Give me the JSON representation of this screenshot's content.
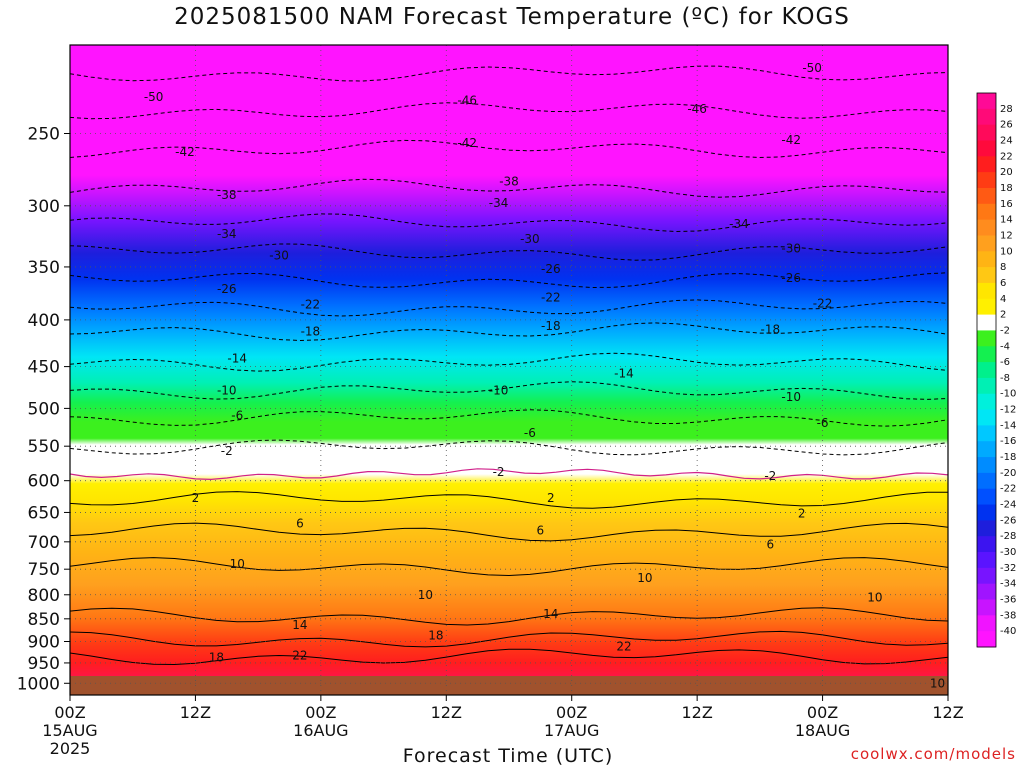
{
  "title": "2025081500 NAM Forecast Temperature (ºC) for KOGS",
  "xlabel": "Forecast Time (UTC)",
  "credit": "coolwx.com/models",
  "chart_data": {
    "type": "heatmap",
    "title": "2025081500 NAM Forecast Temperature (ºC) for KOGS",
    "xlabel": "Forecast Time (UTC)",
    "ylabel": "",
    "y_scale": "log-pressure",
    "y_ticks": [
      250,
      300,
      350,
      400,
      450,
      500,
      550,
      600,
      650,
      700,
      750,
      800,
      850,
      900,
      950,
      1000
    ],
    "ylim": [
      200,
      1030
    ],
    "x_ticks": [
      {
        "hour": 0,
        "label": "00Z",
        "date": "15AUG",
        "year": "2025"
      },
      {
        "hour": 12,
        "label": "12Z",
        "date": "",
        "year": ""
      },
      {
        "hour": 24,
        "label": "00Z",
        "date": "16AUG",
        "year": ""
      },
      {
        "hour": 36,
        "label": "12Z",
        "date": "",
        "year": ""
      },
      {
        "hour": 48,
        "label": "00Z",
        "date": "17AUG",
        "year": ""
      },
      {
        "hour": 60,
        "label": "12Z",
        "date": "",
        "year": ""
      },
      {
        "hour": 72,
        "label": "00Z",
        "date": "18AUG",
        "year": ""
      },
      {
        "hour": 84,
        "label": "12Z",
        "date": "",
        "year": ""
      }
    ],
    "xlim": [
      0,
      84
    ],
    "contour_levels": [
      -50,
      -46,
      -42,
      -38,
      -34,
      -30,
      -26,
      -22,
      -18,
      -14,
      -10,
      -6,
      -2,
      2,
      6,
      10,
      14,
      18,
      22
    ],
    "contour_labels": [
      {
        "t": 8,
        "p": 228,
        "v": "-50"
      },
      {
        "t": 71,
        "p": 212,
        "v": "-50"
      },
      {
        "t": 38,
        "p": 230,
        "v": "-46"
      },
      {
        "t": 60,
        "p": 235,
        "v": "-46"
      },
      {
        "t": 11,
        "p": 262,
        "v": "-42"
      },
      {
        "t": 38,
        "p": 256,
        "v": "-42"
      },
      {
        "t": 69,
        "p": 254,
        "v": "-42"
      },
      {
        "t": 42,
        "p": 282,
        "v": "-38"
      },
      {
        "t": 15,
        "p": 292,
        "v": "-38"
      },
      {
        "t": 41,
        "p": 298,
        "v": "-34"
      },
      {
        "t": 15,
        "p": 322,
        "v": "-34"
      },
      {
        "t": 64,
        "p": 314,
        "v": "-34"
      },
      {
        "t": 44,
        "p": 326,
        "v": "-30"
      },
      {
        "t": 20,
        "p": 340,
        "v": "-30"
      },
      {
        "t": 69,
        "p": 334,
        "v": "-30"
      },
      {
        "t": 46,
        "p": 352,
        "v": "-26"
      },
      {
        "t": 15,
        "p": 370,
        "v": "-26"
      },
      {
        "t": 69,
        "p": 360,
        "v": "-26"
      },
      {
        "t": 46,
        "p": 378,
        "v": "-22"
      },
      {
        "t": 23,
        "p": 385,
        "v": "-22"
      },
      {
        "t": 72,
        "p": 384,
        "v": "-22"
      },
      {
        "t": 46,
        "p": 406,
        "v": "-18"
      },
      {
        "t": 23,
        "p": 412,
        "v": "-18"
      },
      {
        "t": 67,
        "p": 410,
        "v": "-18"
      },
      {
        "t": 16,
        "p": 441,
        "v": "-14"
      },
      {
        "t": 53,
        "p": 458,
        "v": "-14"
      },
      {
        "t": 15,
        "p": 478,
        "v": "-10"
      },
      {
        "t": 41,
        "p": 478,
        "v": "-10"
      },
      {
        "t": 69,
        "p": 486,
        "v": "-10"
      },
      {
        "t": 16,
        "p": 509,
        "v": "-6"
      },
      {
        "t": 44,
        "p": 532,
        "v": "-6"
      },
      {
        "t": 72,
        "p": 519,
        "v": "-6"
      },
      {
        "t": 15,
        "p": 557,
        "v": "-2"
      },
      {
        "t": 41,
        "p": 587,
        "v": "-2"
      },
      {
        "t": 67,
        "p": 593,
        "v": "-2"
      },
      {
        "t": 12,
        "p": 627,
        "v": "2"
      },
      {
        "t": 46,
        "p": 627,
        "v": "2"
      },
      {
        "t": 70,
        "p": 652,
        "v": "2"
      },
      {
        "t": 22,
        "p": 668,
        "v": "6"
      },
      {
        "t": 45,
        "p": 680,
        "v": "6"
      },
      {
        "t": 67,
        "p": 705,
        "v": "6"
      },
      {
        "t": 16,
        "p": 740,
        "v": "10"
      },
      {
        "t": 55,
        "p": 767,
        "v": "10"
      },
      {
        "t": 34,
        "p": 800,
        "v": "10"
      },
      {
        "t": 77,
        "p": 806,
        "v": "10"
      },
      {
        "t": 22,
        "p": 863,
        "v": "14"
      },
      {
        "t": 46,
        "p": 840,
        "v": "14"
      },
      {
        "t": 35,
        "p": 887,
        "v": "18"
      },
      {
        "t": 14,
        "p": 937,
        "v": "18"
      },
      {
        "t": 22,
        "p": 932,
        "v": "22"
      },
      {
        "t": 53,
        "p": 912,
        "v": "22"
      },
      {
        "t": 83,
        "p": 1000,
        "v": "10"
      }
    ],
    "colorbar": {
      "levels": [
        28,
        26,
        24,
        22,
        20,
        18,
        16,
        14,
        12,
        10,
        8,
        6,
        4,
        2,
        -2,
        -4,
        -6,
        -8,
        -10,
        -12,
        -14,
        -16,
        -18,
        -20,
        -22,
        -24,
        -26,
        -28,
        -30,
        -32,
        -34,
        -36,
        -38,
        -40
      ],
      "colors": [
        "#ff0a96",
        "#ff0a78",
        "#ff0a5a",
        "#ff0a3c",
        "#ff1e1e",
        "#ff3c14",
        "#ff5a14",
        "#ff7814",
        "#ff8c1e",
        "#ffa01e",
        "#ffb414",
        "#ffc814",
        "#ffe600",
        "#fff000",
        "#ffffff",
        "#3cf01e",
        "#14f050",
        "#00f08c",
        "#00f0b4",
        "#00f0dc",
        "#00e6f5",
        "#00c8ff",
        "#00aaff",
        "#008cff",
        "#006eff",
        "#0050ff",
        "#0032f0",
        "#1e1edc",
        "#3c14f0",
        "#5a14ff",
        "#7814ff",
        "#a014ff",
        "#c814ff",
        "#f014ff",
        "#ff14ff"
      ]
    },
    "grid": true
  }
}
